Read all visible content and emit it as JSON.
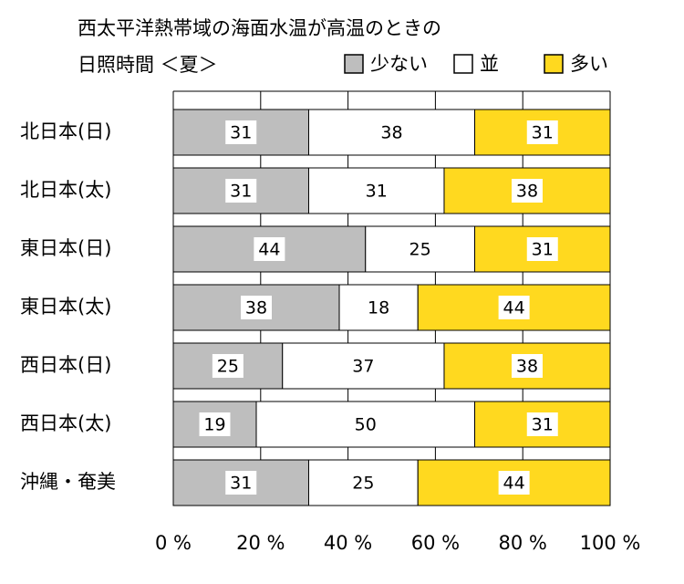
{
  "chart_data": {
    "type": "stacked-bar-horizontal",
    "title": "西太平洋熱帯域の海面水温が高温のときの",
    "subtitle": "日照時間 ＜夏＞",
    "categories": [
      "北日本(日)",
      "北日本(太)",
      "東日本(日)",
      "東日本(太)",
      "西日本(日)",
      "西日本(太)",
      "沖縄・奄美"
    ],
    "series": [
      {
        "name": "少ない",
        "color": "#bebebe",
        "values": [
          31,
          31,
          44,
          38,
          25,
          19,
          31
        ]
      },
      {
        "name": "並",
        "color": "#ffffff",
        "values": [
          38,
          31,
          25,
          18,
          37,
          50,
          25
        ]
      },
      {
        "name": "多い",
        "color": "#ffd91f",
        "values": [
          31,
          38,
          31,
          44,
          38,
          31,
          44
        ]
      }
    ],
    "xlim": [
      0,
      100
    ],
    "xticks": [
      {
        "value": 0,
        "label": "0 %"
      },
      {
        "value": 20,
        "label": "20 %"
      },
      {
        "value": 40,
        "label": "40 %"
      },
      {
        "value": 60,
        "label": "60 %"
      },
      {
        "value": 80,
        "label": "80 %"
      },
      {
        "value": 100,
        "label": "100 %"
      }
    ],
    "grid": true,
    "legend": "top-right"
  }
}
